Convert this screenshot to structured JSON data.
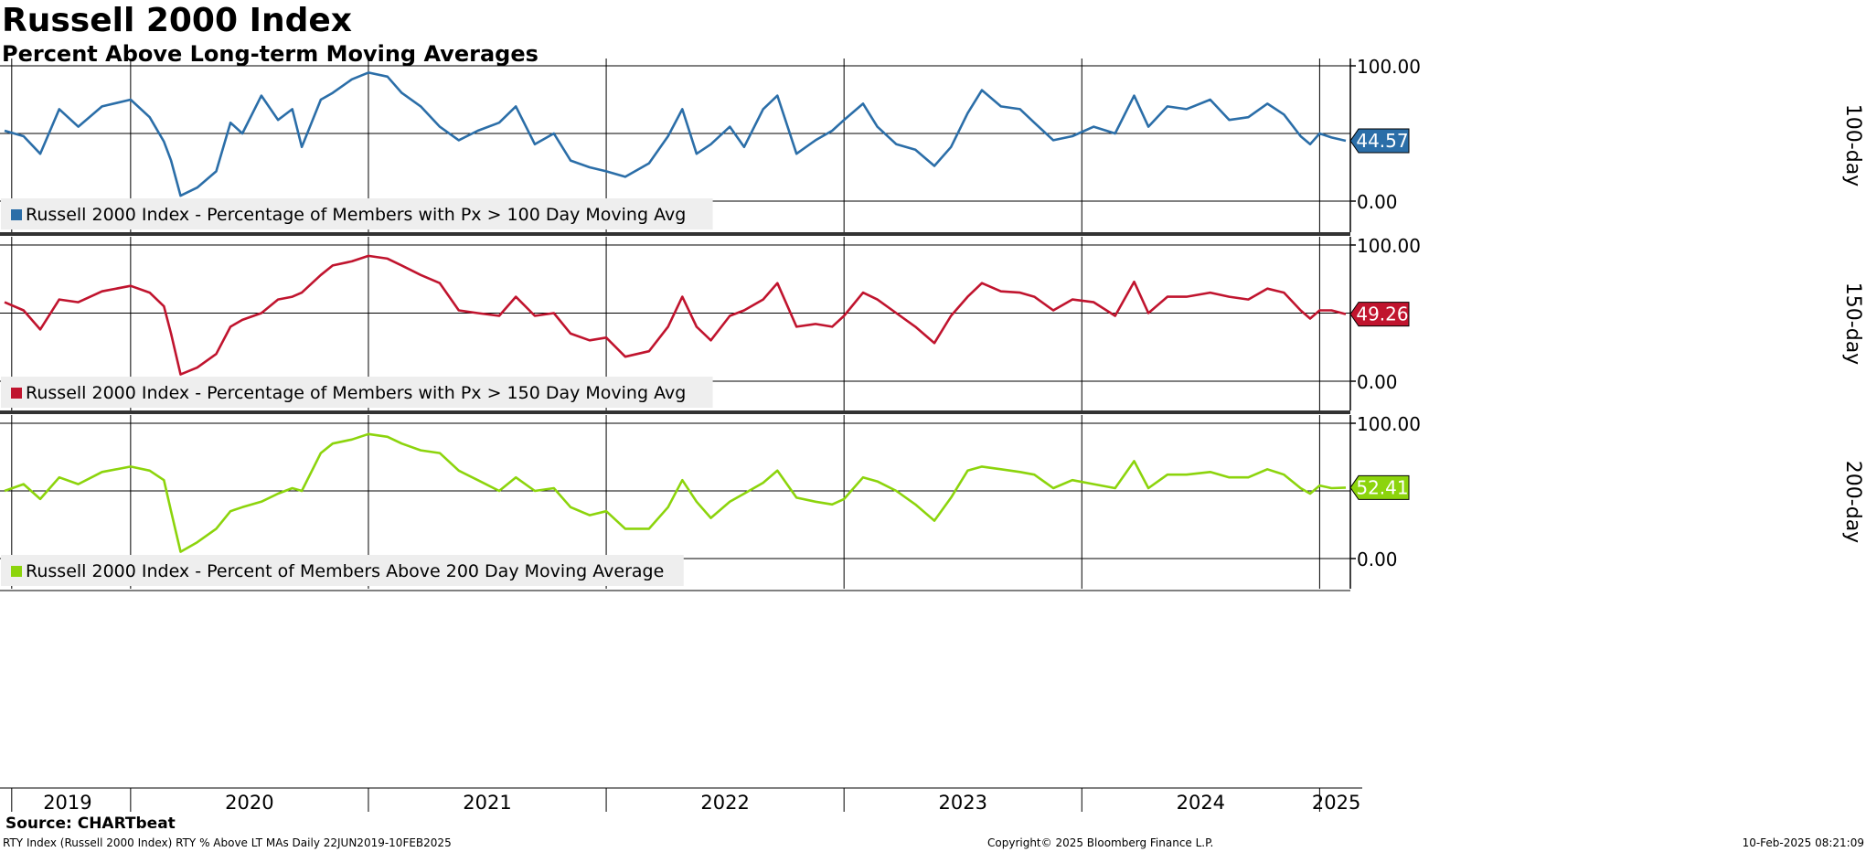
{
  "title": "Russell 2000 Index",
  "subtitle": "Percent Above Long-term Moving Averages",
  "source": "Source: CHARTbeat",
  "footer": {
    "left": "RTY Index (Russell 2000 Index) RTY % Above LT MAs  Daily 22JUN2019-10FEB2025",
    "center": "Copyright© 2025 Bloomberg Finance L.P.",
    "right": "10-Feb-2025 08:21:09"
  },
  "chart_data": [
    {
      "type": "line",
      "panel_label": "100-day",
      "legend": "Russell 2000 Index - Percentage of Members with Px > 100 Day Moving Avg",
      "color": "#2b6ea8",
      "last_value": "44.57",
      "y_ticks": [
        "100.00",
        "0.00"
      ],
      "ylim": [
        0,
        100
      ],
      "x_start": 2019.47,
      "x_end": 2025.11,
      "points": [
        [
          2019.47,
          52
        ],
        [
          2019.55,
          48
        ],
        [
          2019.62,
          35
        ],
        [
          2019.7,
          68
        ],
        [
          2019.78,
          55
        ],
        [
          2019.88,
          70
        ],
        [
          2020.0,
          75
        ],
        [
          2020.08,
          62
        ],
        [
          2020.14,
          44
        ],
        [
          2020.17,
          30
        ],
        [
          2020.21,
          4
        ],
        [
          2020.28,
          10
        ],
        [
          2020.36,
          22
        ],
        [
          2020.42,
          58
        ],
        [
          2020.47,
          50
        ],
        [
          2020.55,
          78
        ],
        [
          2020.62,
          60
        ],
        [
          2020.68,
          68
        ],
        [
          2020.72,
          40
        ],
        [
          2020.8,
          75
        ],
        [
          2020.85,
          80
        ],
        [
          2020.93,
          90
        ],
        [
          2021.0,
          95
        ],
        [
          2021.08,
          92
        ],
        [
          2021.14,
          80
        ],
        [
          2021.22,
          70
        ],
        [
          2021.3,
          55
        ],
        [
          2021.38,
          45
        ],
        [
          2021.46,
          52
        ],
        [
          2021.55,
          58
        ],
        [
          2021.62,
          70
        ],
        [
          2021.7,
          42
        ],
        [
          2021.78,
          50
        ],
        [
          2021.85,
          30
        ],
        [
          2021.93,
          25
        ],
        [
          2022.0,
          22
        ],
        [
          2022.08,
          18
        ],
        [
          2022.18,
          28
        ],
        [
          2022.26,
          48
        ],
        [
          2022.32,
          68
        ],
        [
          2022.38,
          35
        ],
        [
          2022.44,
          42
        ],
        [
          2022.52,
          55
        ],
        [
          2022.58,
          40
        ],
        [
          2022.66,
          68
        ],
        [
          2022.72,
          78
        ],
        [
          2022.8,
          35
        ],
        [
          2022.88,
          45
        ],
        [
          2022.95,
          52
        ],
        [
          2023.0,
          60
        ],
        [
          2023.08,
          72
        ],
        [
          2023.14,
          55
        ],
        [
          2023.22,
          42
        ],
        [
          2023.3,
          38
        ],
        [
          2023.38,
          26
        ],
        [
          2023.45,
          40
        ],
        [
          2023.52,
          65
        ],
        [
          2023.58,
          82
        ],
        [
          2023.66,
          70
        ],
        [
          2023.74,
          68
        ],
        [
          2023.8,
          58
        ],
        [
          2023.88,
          45
        ],
        [
          2023.96,
          48
        ],
        [
          2024.05,
          55
        ],
        [
          2024.14,
          50
        ],
        [
          2024.22,
          78
        ],
        [
          2024.28,
          55
        ],
        [
          2024.36,
          70
        ],
        [
          2024.44,
          68
        ],
        [
          2024.54,
          75
        ],
        [
          2024.62,
          60
        ],
        [
          2024.7,
          62
        ],
        [
          2024.78,
          72
        ],
        [
          2024.85,
          64
        ],
        [
          2024.92,
          48
        ],
        [
          2024.96,
          42
        ],
        [
          2025.0,
          50
        ],
        [
          2025.05,
          47
        ],
        [
          2025.11,
          44.57
        ]
      ]
    },
    {
      "type": "line",
      "panel_label": "150-day",
      "legend": "Russell 2000 Index - Percentage of Members with Px > 150 Day Moving Avg",
      "color": "#c0142e",
      "last_value": "49.26",
      "y_ticks": [
        "100.00",
        "0.00"
      ],
      "ylim": [
        0,
        100
      ],
      "x_start": 2019.47,
      "x_end": 2025.11,
      "points": [
        [
          2019.47,
          58
        ],
        [
          2019.55,
          52
        ],
        [
          2019.62,
          38
        ],
        [
          2019.7,
          60
        ],
        [
          2019.78,
          58
        ],
        [
          2019.88,
          66
        ],
        [
          2020.0,
          70
        ],
        [
          2020.08,
          65
        ],
        [
          2020.14,
          55
        ],
        [
          2020.17,
          35
        ],
        [
          2020.21,
          5
        ],
        [
          2020.28,
          10
        ],
        [
          2020.36,
          20
        ],
        [
          2020.42,
          40
        ],
        [
          2020.47,
          45
        ],
        [
          2020.55,
          50
        ],
        [
          2020.62,
          60
        ],
        [
          2020.68,
          62
        ],
        [
          2020.72,
          65
        ],
        [
          2020.8,
          78
        ],
        [
          2020.85,
          85
        ],
        [
          2020.93,
          88
        ],
        [
          2021.0,
          92
        ],
        [
          2021.08,
          90
        ],
        [
          2021.14,
          85
        ],
        [
          2021.22,
          78
        ],
        [
          2021.3,
          72
        ],
        [
          2021.38,
          52
        ],
        [
          2021.46,
          50
        ],
        [
          2021.55,
          48
        ],
        [
          2021.62,
          62
        ],
        [
          2021.7,
          48
        ],
        [
          2021.78,
          50
        ],
        [
          2021.85,
          35
        ],
        [
          2021.93,
          30
        ],
        [
          2022.0,
          32
        ],
        [
          2022.08,
          18
        ],
        [
          2022.18,
          22
        ],
        [
          2022.26,
          40
        ],
        [
          2022.32,
          62
        ],
        [
          2022.38,
          40
        ],
        [
          2022.44,
          30
        ],
        [
          2022.52,
          48
        ],
        [
          2022.58,
          52
        ],
        [
          2022.66,
          60
        ],
        [
          2022.72,
          72
        ],
        [
          2022.8,
          40
        ],
        [
          2022.88,
          42
        ],
        [
          2022.95,
          40
        ],
        [
          2023.0,
          48
        ],
        [
          2023.08,
          65
        ],
        [
          2023.14,
          60
        ],
        [
          2023.22,
          50
        ],
        [
          2023.3,
          40
        ],
        [
          2023.38,
          28
        ],
        [
          2023.45,
          48
        ],
        [
          2023.52,
          62
        ],
        [
          2023.58,
          72
        ],
        [
          2023.66,
          66
        ],
        [
          2023.74,
          65
        ],
        [
          2023.8,
          62
        ],
        [
          2023.88,
          52
        ],
        [
          2023.96,
          60
        ],
        [
          2024.05,
          58
        ],
        [
          2024.14,
          48
        ],
        [
          2024.22,
          73
        ],
        [
          2024.28,
          50
        ],
        [
          2024.36,
          62
        ],
        [
          2024.44,
          62
        ],
        [
          2024.54,
          65
        ],
        [
          2024.62,
          62
        ],
        [
          2024.7,
          60
        ],
        [
          2024.78,
          68
        ],
        [
          2024.85,
          65
        ],
        [
          2024.92,
          52
        ],
        [
          2024.96,
          46
        ],
        [
          2025.0,
          52
        ],
        [
          2025.05,
          52
        ],
        [
          2025.11,
          49.26
        ]
      ]
    },
    {
      "type": "line",
      "panel_label": "200-day",
      "legend": "Russell 2000 Index - Percent of Members Above 200 Day Moving Average",
      "color": "#8cd40c",
      "last_value": "52.41",
      "y_ticks": [
        "100.00",
        "0.00"
      ],
      "ylim": [
        0,
        100
      ],
      "x_start": 2019.47,
      "x_end": 2025.11,
      "points": [
        [
          2019.47,
          50
        ],
        [
          2019.55,
          55
        ],
        [
          2019.62,
          44
        ],
        [
          2019.7,
          60
        ],
        [
          2019.78,
          55
        ],
        [
          2019.88,
          64
        ],
        [
          2020.0,
          68
        ],
        [
          2020.08,
          65
        ],
        [
          2020.14,
          58
        ],
        [
          2020.17,
          35
        ],
        [
          2020.21,
          5
        ],
        [
          2020.28,
          12
        ],
        [
          2020.36,
          22
        ],
        [
          2020.42,
          35
        ],
        [
          2020.47,
          38
        ],
        [
          2020.55,
          42
        ],
        [
          2020.62,
          48
        ],
        [
          2020.68,
          52
        ],
        [
          2020.72,
          50
        ],
        [
          2020.8,
          78
        ],
        [
          2020.85,
          85
        ],
        [
          2020.93,
          88
        ],
        [
          2021.0,
          92
        ],
        [
          2021.08,
          90
        ],
        [
          2021.14,
          85
        ],
        [
          2021.22,
          80
        ],
        [
          2021.3,
          78
        ],
        [
          2021.38,
          65
        ],
        [
          2021.46,
          58
        ],
        [
          2021.55,
          50
        ],
        [
          2021.62,
          60
        ],
        [
          2021.7,
          50
        ],
        [
          2021.78,
          52
        ],
        [
          2021.85,
          38
        ],
        [
          2021.93,
          32
        ],
        [
          2022.0,
          35
        ],
        [
          2022.08,
          22
        ],
        [
          2022.18,
          22
        ],
        [
          2022.26,
          38
        ],
        [
          2022.32,
          58
        ],
        [
          2022.38,
          42
        ],
        [
          2022.44,
          30
        ],
        [
          2022.52,
          42
        ],
        [
          2022.58,
          48
        ],
        [
          2022.66,
          56
        ],
        [
          2022.72,
          65
        ],
        [
          2022.8,
          45
        ],
        [
          2022.88,
          42
        ],
        [
          2022.95,
          40
        ],
        [
          2023.0,
          44
        ],
        [
          2023.08,
          60
        ],
        [
          2023.14,
          57
        ],
        [
          2023.22,
          50
        ],
        [
          2023.3,
          40
        ],
        [
          2023.38,
          28
        ],
        [
          2023.45,
          45
        ],
        [
          2023.52,
          65
        ],
        [
          2023.58,
          68
        ],
        [
          2023.66,
          66
        ],
        [
          2023.74,
          64
        ],
        [
          2023.8,
          62
        ],
        [
          2023.88,
          52
        ],
        [
          2023.96,
          58
        ],
        [
          2024.05,
          55
        ],
        [
          2024.14,
          52
        ],
        [
          2024.22,
          72
        ],
        [
          2024.28,
          52
        ],
        [
          2024.36,
          62
        ],
        [
          2024.44,
          62
        ],
        [
          2024.54,
          64
        ],
        [
          2024.62,
          60
        ],
        [
          2024.7,
          60
        ],
        [
          2024.78,
          66
        ],
        [
          2024.85,
          62
        ],
        [
          2024.92,
          52
        ],
        [
          2024.96,
          48
        ],
        [
          2025.0,
          54
        ],
        [
          2025.05,
          52
        ],
        [
          2025.11,
          52.41
        ]
      ]
    }
  ],
  "x_axis": {
    "ticks": [
      2019.5,
      2020,
      2021,
      2022,
      2023,
      2024,
      2025
    ],
    "year_labels": [
      {
        "label": "2019",
        "value": 2019.735
      },
      {
        "label": "2020",
        "value": 2020.5
      },
      {
        "label": "2021",
        "value": 2021.5
      },
      {
        "label": "2022",
        "value": 2022.5
      },
      {
        "label": "2023",
        "value": 2023.5
      },
      {
        "label": "2024",
        "value": 2024.5
      },
      {
        "label": "2025",
        "value": 2025.07
      }
    ]
  }
}
